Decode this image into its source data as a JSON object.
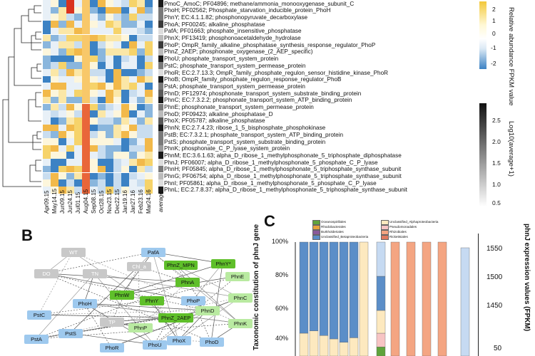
{
  "panels": {
    "b_label": "B",
    "c_label": "C"
  },
  "heatmap": {
    "columns": [
      "Apr09.15",
      "May14.15",
      "Jun09.15",
      "Jun24.15",
      "Jul01.15",
      "Aug04.15",
      "Sep08.15",
      "Oct28.15",
      "Nov23.15",
      "Dec22.15",
      "Jan19.16",
      "Jan27.16",
      "Feb23.16",
      "Mar24.16"
    ],
    "avg_label": "average",
    "genes": [
      "PmoC_AmoC; PF04896; methane/ammonia_monooxygenase_subunit_C",
      "PhoH; PF02562; Phosphate_starvation_inducible_protein_PhoH",
      "PhnY; EC:4.1.1.82; phosphonopyruvate_decarboxylase",
      "PhoA; PF00245; alkaline_phosphatase",
      "PafA; PF01663; phosphate_insensitive_phosphatase",
      "PhnX; PF13419; phosphonoacetaldehyde_hydrolase",
      "PhoP; OmpR_family_alkaline_phosphatase_synthesis_response_regulator_PhoP",
      "PhnZ_2AEP; phosphonate_oxygenase_(2_AEP_specific)",
      "PhoU; phosphate_transport_system_protein",
      "PstC; phosphate_transport_system_permease_protein",
      "PhoR; EC:2.7.13.3; OmpR_family_phosphate_regulon_sensor_histidine_kinase_PhoR",
      "PhoB; OmpR_family_phosphate_regulon_response_regulator_PhoB",
      "PstA; phosphate_transport_system_permease_protein",
      "PhnD; PF12974; phosphonate_transport_system_substrate_binding_protein",
      "PhnC; EC:7.3.2.2; phosphonate_transport_system_ATP_binding_protein",
      "PhnE; phosphonate_transport_system_permease_protein",
      "PhoD; PF09423; alkaline_phosphatase_D",
      "PhoX; PF05787; alkaline_phosphatase",
      "PhnN; EC:2.7.4.23; ribose_1_5_bisphosphate_phosphokinase",
      "PstB; EC:7.3.2.1; phosphate_transport_system_ATP_binding_protein",
      "PstS; phosphate_transport_system_substrate_binding_protein",
      "PhnK; phosphonate_C_P_lyase_system_protein",
      "PhnM; EC:3.6.1.63; alpha_D_ribose_1_methylphosphonate_5_triphosphate_diphosphatase",
      "PhnJ; PF06007; alpha_D_ribose_1_methylphosphonate_5_phosphate_C_P_lyase",
      "PhnH; PF05845; alpha_D_ribose_1_methylphosphonate_5_triphosphate_synthase_subunit",
      "PhnG; PF06754; alpha_D_ribose_1_methylphosphonate_5_triphosphate_synthase_subunit",
      "PhnI; PF05861; alpha_D_ribose_1_methylphosphonate_5_phosphate_C_P_lyase",
      "PhnL; EC:2.7.8.37; alpha_D_ribose_1_methylphosphonate_5_triphosphate_synthase_subunit"
    ],
    "colorbar_top": {
      "title": "Relative abundance FPKM value",
      "ticks": [
        "2",
        "1",
        "0",
        "-1",
        "-2"
      ],
      "colors": [
        "#f3c83a",
        "#fff8d6",
        "#ffffff",
        "#dbe9f5",
        "#3c82c4"
      ]
    },
    "colorbar_bottom": {
      "title": "Log10(average+1)",
      "ticks": [
        "2.5",
        "2.0",
        "1.5",
        "1.0",
        "0.5"
      ],
      "colors": [
        "#111111",
        "#ffffff"
      ]
    }
  },
  "network": {
    "nodes": [
      {
        "label": "WT",
        "style": "gray"
      },
      {
        "label": "PafA",
        "style": "blue"
      },
      {
        "label": "DO",
        "style": "gray"
      },
      {
        "label": "TN",
        "style": "gray"
      },
      {
        "label": "Chl_a",
        "style": "gray"
      },
      {
        "label": "PhnZ_MPN",
        "style": "green"
      },
      {
        "label": "PhnY*",
        "style": "green"
      },
      {
        "label": "PhnE",
        "style": "lgreen"
      },
      {
        "label": "PhnA",
        "style": "green"
      },
      {
        "label": "PhoH",
        "style": "blue"
      },
      {
        "label": "PhnW",
        "style": "green"
      },
      {
        "label": "PhnY",
        "style": "green"
      },
      {
        "label": "PhoP",
        "style": "blue"
      },
      {
        "label": "PhnC",
        "style": "lgreen"
      },
      {
        "label": "PstC",
        "style": "blue"
      },
      {
        "label": "PhnZ_2AEP",
        "style": "green"
      },
      {
        "label": "PhnD",
        "style": "lgreen"
      },
      {
        "label": "TP",
        "style": "gray"
      },
      {
        "label": "PhnP",
        "style": "lgreen"
      },
      {
        "label": "PhnK",
        "style": "lgreen"
      },
      {
        "label": "PstA",
        "style": "blue"
      },
      {
        "label": "PstS",
        "style": "blue"
      },
      {
        "label": "PhoR",
        "style": "blue"
      },
      {
        "label": "PhoU",
        "style": "blue"
      },
      {
        "label": "PhoX",
        "style": "blue"
      },
      {
        "label": "PhoD",
        "style": "blue"
      }
    ]
  },
  "chart_data": {
    "type": "bar",
    "title": "",
    "ylabel": "Taxonomic constitution of phnJ gene",
    "ylabel_right": "phnJ expression values (FPKM)",
    "y_ticks_left": [
      "100%",
      "80%",
      "60%",
      "40%"
    ],
    "y_ticks_right": [
      "1550",
      "1500",
      "1450",
      "50"
    ],
    "legend_left": [
      "Oceanospirillales",
      "Rhodobacterales",
      "Burkholderiales",
      "Unclassified_Betaproteobacteria"
    ],
    "legend_right": [
      "Unclassified_Alphaproteobacteria",
      "Pseudomonadales",
      "Rhizobiales",
      "Rickettsiales"
    ],
    "colors": {
      "blue": "#5b8ec8",
      "cream": "#fde9bf",
      "salmon": "#f4a582",
      "green": "#5fa33b",
      "pink": "#f7c4c4",
      "lightblue": "#c6daf2"
    },
    "series": [
      {
        "name": "Unclassified_Betaproteobacteria",
        "values": [
          85,
          85,
          85,
          85,
          85,
          85,
          0,
          70,
          0,
          0,
          0,
          0,
          95
        ]
      },
      {
        "name": "Unclassified_Alphaproteobacteria",
        "values": [
          15,
          15,
          15,
          15,
          15,
          15,
          0,
          30,
          0,
          0,
          0,
          0,
          0
        ]
      },
      {
        "name": "Pseudomonadales",
        "values": [
          0,
          0,
          0,
          0,
          0,
          0,
          0,
          0,
          100,
          100,
          100,
          100,
          0
        ]
      }
    ]
  }
}
